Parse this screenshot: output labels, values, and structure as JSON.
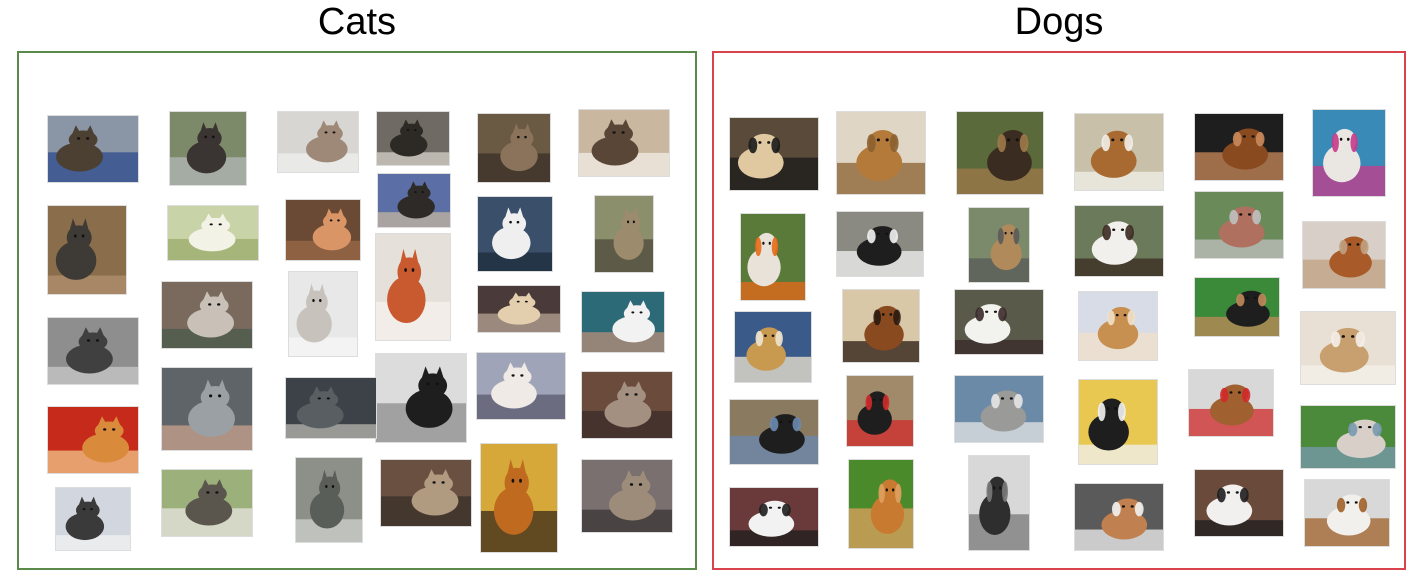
{
  "groups": {
    "cats": {
      "title": "Cats",
      "border_color": "#5a8a4a"
    },
    "dogs": {
      "title": "Dogs",
      "border_color": "#d9434b"
    }
  },
  "cat_photos": [
    {
      "bg": "#8a95a5",
      "subject": "#4b4032",
      "accent": "#2c4b8c"
    },
    {
      "bg": "#7d8a6a",
      "subject": "#3a3532",
      "accent": "#b2b7b8"
    },
    {
      "bg": "#d8d6d2",
      "subject": "#9e8877",
      "accent": "#efefef"
    },
    {
      "bg": "#6f6b64",
      "subject": "#2d2a26",
      "accent": "#d7d1c8"
    },
    {
      "bg": "#6a5a44",
      "subject": "#8a735a",
      "accent": "#3a3026"
    },
    {
      "bg": "#c9b79f",
      "subject": "#5a4636",
      "accent": "#f1ede6"
    },
    {
      "bg": "#5b6fa6",
      "subject": "#2e2a28",
      "accent": "#c3b6a0"
    },
    {
      "bg": "#8a6d4a",
      "subject": "#3e3a36",
      "accent": "#b09070"
    },
    {
      "bg": "#c9d3a8",
      "subject": "#f3f2e6",
      "accent": "#9aab6a"
    },
    {
      "bg": "#6a4a34",
      "subject": "#d99566",
      "accent": "#9b6a48"
    },
    {
      "bg": "#3a4f6a",
      "subject": "#efefef",
      "accent": "#1d2c3c"
    },
    {
      "bg": "#8c8f6c",
      "subject": "#9c8b6c",
      "accent": "#4d4a3b"
    },
    {
      "bg": "#e6e0db",
      "subject": "#c95a2f",
      "accent": "#f6f2ee"
    },
    {
      "bg": "#7a6a5e",
      "subject": "#c9c1b8",
      "accent": "#4b5c4b"
    },
    {
      "bg": "#e8e8e8",
      "subject": "#c7c2bc",
      "accent": "#f7f7f7"
    },
    {
      "bg": "#4a3a3a",
      "subject": "#e3cfae",
      "accent": "#b5a493"
    },
    {
      "bg": "#2d6a78",
      "subject": "#f2f2f2",
      "accent": "#b88f78"
    },
    {
      "bg": "#8e8e8e",
      "subject": "#404040",
      "accent": "#c8c8c8"
    },
    {
      "bg": "#dcdcdc",
      "subject": "#1e1e1e",
      "accent": "#8e8e8e"
    },
    {
      "bg": "#a0a4b8",
      "subject": "#efeae6",
      "accent": "#5a5a6e"
    },
    {
      "bg": "#5e6468",
      "subject": "#9ba0a4",
      "accent": "#c9a28c"
    },
    {
      "bg": "#3c4248",
      "subject": "#595e62",
      "accent": "#b8b8b0"
    },
    {
      "bg": "#6b4b3b",
      "subject": "#a49080",
      "accent": "#3b2b2b"
    },
    {
      "bg": "#c62a1a",
      "subject": "#d98a3a",
      "accent": "#f2c88a"
    },
    {
      "bg": "#8c9088",
      "subject": "#5a5e58",
      "accent": "#cfd2ce"
    },
    {
      "bg": "#6a5040",
      "subject": "#b09a80",
      "accent": "#383028"
    },
    {
      "bg": "#d6a83a",
      "subject": "#c06a20",
      "accent": "#3a2a1a"
    },
    {
      "bg": "#7a7070",
      "subject": "#9e8c7a",
      "accent": "#3a3434"
    },
    {
      "bg": "#d2d6de",
      "subject": "#3a3a3a",
      "accent": "#f2f2f2"
    },
    {
      "bg": "#9bb07a",
      "subject": "#5a564e",
      "accent": "#e8e6e0"
    },
    {
      "bg": "#8a6a50",
      "subject": "#f2f2f2",
      "accent": "#1a1a1a"
    }
  ],
  "dog_photos": [
    {
      "bg": "#5a4a3a",
      "subject": "#e0c9a0",
      "accent": "#1a1a1a"
    },
    {
      "bg": "#e0d6c6",
      "subject": "#b47a3a",
      "accent": "#8a6030"
    },
    {
      "bg": "#5a6a3a",
      "subject": "#3a2c20",
      "accent": "#a07a4a"
    },
    {
      "bg": "#c8c0a8",
      "subject": "#a86a30",
      "accent": "#f2f0ea"
    },
    {
      "bg": "#1e1e1e",
      "subject": "#8a4a20",
      "accent": "#c98a5a"
    },
    {
      "bg": "#3a8ab8",
      "subject": "#eae6e2",
      "accent": "#c83a8a"
    },
    {
      "bg": "#6a8a5a",
      "subject": "#b07060",
      "accent": "#c0c0c0"
    },
    {
      "bg": "#5a7a3a",
      "subject": "#e8e2d8",
      "accent": "#e86a1a"
    },
    {
      "bg": "#8a8a82",
      "subject": "#1e1e1e",
      "accent": "#f2f2f2"
    },
    {
      "bg": "#7a8a6a",
      "subject": "#b08a5a",
      "accent": "#5a5a5a"
    },
    {
      "bg": "#6a7a5a",
      "subject": "#f2f0ec",
      "accent": "#3a2a20"
    },
    {
      "bg": "#d8d0c8",
      "subject": "#a85a28",
      "accent": "#c0a080"
    },
    {
      "bg": "#3a5a8a",
      "subject": "#c89a50",
      "accent": "#f0e6d0"
    },
    {
      "bg": "#d8c8a8",
      "subject": "#8a4a20",
      "accent": "#2a1a10"
    },
    {
      "bg": "#5a5a4a",
      "subject": "#f2f2ee",
      "accent": "#3a2a2a"
    },
    {
      "bg": "#d8dce6",
      "subject": "#c89050",
      "accent": "#f0e0c8"
    },
    {
      "bg": "#3a8a3a",
      "subject": "#1e1e1e",
      "accent": "#c08a5a"
    },
    {
      "bg": "#e8e0d4",
      "subject": "#c8a070",
      "accent": "#f4f0ea"
    },
    {
      "bg": "#8a7a60",
      "subject": "#1e1e1e",
      "accent": "#6a8ab0"
    },
    {
      "bg": "#a08a6a",
      "subject": "#1e1e1e",
      "accent": "#d02a2a"
    },
    {
      "bg": "#6a8aa8",
      "subject": "#9a9a98",
      "accent": "#e6e6e6"
    },
    {
      "bg": "#e8c850",
      "subject": "#1e1e1e",
      "accent": "#f2f2f2"
    },
    {
      "bg": "#d8d8d8",
      "subject": "#a06030",
      "accent": "#d02a2a"
    },
    {
      "bg": "#4a8a3a",
      "subject": "#d8d0c8",
      "accent": "#7a9ab0"
    },
    {
      "bg": "#6a3a3a",
      "subject": "#f2f2f2",
      "accent": "#1e1e1e"
    },
    {
      "bg": "#4a8a2a",
      "subject": "#c87a30",
      "accent": "#e0a060"
    },
    {
      "bg": "#d8d8d8",
      "subject": "#2e2e2e",
      "accent": "#7a7a7a"
    },
    {
      "bg": "#5a5a5a",
      "subject": "#c08050",
      "accent": "#f2f2f2"
    },
    {
      "bg": "#6a4a3a",
      "subject": "#f2f0ee",
      "accent": "#1e1e1e"
    },
    {
      "bg": "#d8d8d8",
      "subject": "#f2f0ec",
      "accent": "#a0602a"
    }
  ]
}
